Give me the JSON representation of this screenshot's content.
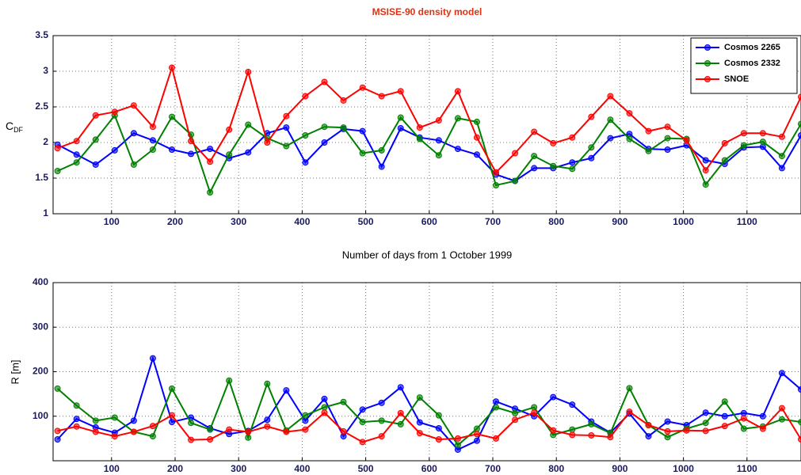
{
  "chart_data": [
    {
      "type": "line",
      "title": "MSISE-90 density model",
      "ylabel": "C",
      "ylabel_sub": "DF",
      "xlabel": "Number of days from 1 October 1999",
      "x": [
        15,
        45,
        75,
        105,
        135,
        165,
        195,
        225,
        255,
        285,
        315,
        345,
        375,
        405,
        435,
        465,
        495,
        525,
        555,
        585,
        615,
        645,
        675,
        705,
        735,
        765,
        795,
        825,
        855,
        885,
        915,
        945,
        975,
        1005,
        1035,
        1065,
        1095,
        1125,
        1155,
        1185
      ],
      "xlim": [
        8,
        1185
      ],
      "xticks": [
        100,
        200,
        300,
        400,
        500,
        600,
        700,
        800,
        900,
        1000,
        1100
      ],
      "ylim": [
        1,
        3.5
      ],
      "yticks": [
        1,
        1.5,
        2,
        2.5,
        3,
        3.5
      ],
      "grid": true,
      "legend": "upper right",
      "series": [
        {
          "name": "Cosmos 2265",
          "color": "#0000ff",
          "values": [
            1.97,
            1.83,
            1.69,
            1.89,
            2.13,
            2.03,
            1.9,
            1.84,
            1.91,
            1.78,
            1.86,
            2.13,
            2.21,
            1.72,
            2.0,
            2.19,
            2.16,
            1.66,
            2.2,
            2.07,
            2.03,
            1.91,
            1.83,
            1.55,
            1.46,
            1.64,
            1.64,
            1.72,
            1.78,
            2.06,
            2.12,
            1.91,
            1.9,
            1.96,
            1.75,
            1.7,
            1.93,
            1.94,
            1.64,
            2.1
          ]
        },
        {
          "name": "Cosmos 2332",
          "color": "#008000",
          "values": [
            1.6,
            1.72,
            2.04,
            2.38,
            1.69,
            1.9,
            2.36,
            2.11,
            1.3,
            1.83,
            2.25,
            2.06,
            1.95,
            2.1,
            2.22,
            2.21,
            1.85,
            1.89,
            2.35,
            2.05,
            1.82,
            2.34,
            2.29,
            1.4,
            1.46,
            1.81,
            1.67,
            1.63,
            1.93,
            2.32,
            2.05,
            1.88,
            2.06,
            2.05,
            1.41,
            1.75,
            1.96,
            2.01,
            1.81,
            2.26
          ]
        },
        {
          "name": "SNOE",
          "color": "#ff0000",
          "values": [
            1.92,
            2.02,
            2.38,
            2.43,
            2.52,
            2.22,
            3.05,
            2.02,
            1.73,
            2.18,
            2.99,
            2.0,
            2.37,
            2.65,
            2.85,
            2.59,
            2.77,
            2.65,
            2.72,
            2.21,
            2.31,
            2.72,
            2.07,
            1.58,
            1.85,
            2.15,
            1.99,
            2.07,
            2.36,
            2.65,
            2.41,
            2.16,
            2.22,
            2.03,
            1.61,
            1.99,
            2.13,
            2.13,
            2.08,
            2.64
          ]
        }
      ]
    },
    {
      "type": "line",
      "ylabel": "R [m]",
      "x": [
        15,
        45,
        75,
        105,
        135,
        165,
        195,
        225,
        255,
        285,
        315,
        345,
        375,
        405,
        435,
        465,
        495,
        525,
        555,
        585,
        615,
        645,
        675,
        705,
        735,
        765,
        795,
        825,
        855,
        885,
        915,
        945,
        975,
        1005,
        1035,
        1065,
        1095,
        1125,
        1155,
        1185
      ],
      "xlim": [
        8,
        1185
      ],
      "xticks": [
        100,
        200,
        300,
        400,
        500,
        600,
        700,
        800,
        900,
        1000,
        1100
      ],
      "ylim": [
        0,
        400
      ],
      "yticks": [
        100,
        200,
        300,
        400
      ],
      "grid": true,
      "series": [
        {
          "color": "#0000ff",
          "values": [
            48,
            94,
            75,
            63,
            90,
            230,
            87,
            97,
            73,
            60,
            67,
            92,
            158,
            90,
            139,
            55,
            115,
            130,
            165,
            86,
            73,
            25,
            45,
            133,
            117,
            100,
            143,
            126,
            88,
            63,
            106,
            55,
            88,
            80,
            108,
            100,
            107,
            100,
            197,
            160
          ]
        },
        {
          "color": "#008000",
          "values": [
            162,
            124,
            90,
            97,
            65,
            55,
            162,
            85,
            70,
            180,
            52,
            173,
            68,
            102,
            120,
            132,
            87,
            90,
            82,
            142,
            102,
            35,
            72,
            120,
            107,
            120,
            58,
            70,
            82,
            62,
            163,
            80,
            53,
            72,
            85,
            133,
            72,
            77,
            93,
            87
          ]
        },
        {
          "color": "#ff0000",
          "values": [
            67,
            77,
            65,
            55,
            65,
            78,
            102,
            47,
            48,
            70,
            65,
            77,
            65,
            70,
            108,
            66,
            42,
            55,
            107,
            62,
            48,
            50,
            60,
            50,
            92,
            108,
            68,
            58,
            57,
            53,
            110,
            80,
            66,
            68,
            67,
            78,
            95,
            72,
            118,
            48
          ]
        }
      ]
    }
  ]
}
